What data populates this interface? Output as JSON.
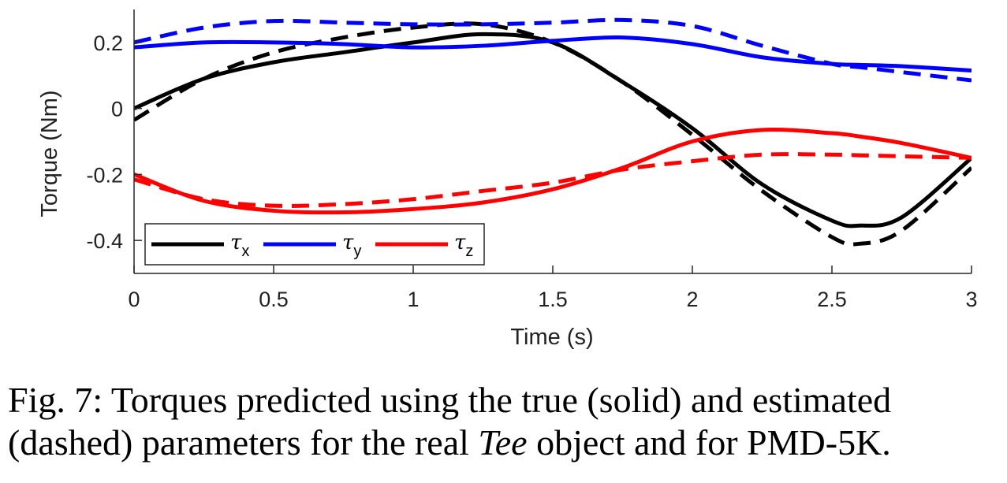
{
  "chart_data": {
    "type": "line",
    "xlabel": "Time (s)",
    "ylabel": "Torque (Nm)",
    "xlim": [
      0,
      3
    ],
    "ylim": [
      -0.5,
      0.3
    ],
    "xticks": [
      0,
      0.5,
      1,
      1.5,
      2,
      2.5,
      3
    ],
    "xtick_labels": [
      "0",
      "0.5",
      "1",
      "1.5",
      "2",
      "2.5",
      "3"
    ],
    "yticks": [
      -0.4,
      -0.2,
      0,
      0.2
    ],
    "ytick_labels": [
      "-0.4",
      "-0.2",
      "0",
      "0.2"
    ],
    "grid": false,
    "legend_position": "bottom-left",
    "x": [
      0,
      0.25,
      0.5,
      0.75,
      1.0,
      1.25,
      1.5,
      1.75,
      2.0,
      2.25,
      2.5,
      2.6,
      2.75,
      3.0
    ],
    "series": [
      {
        "legend_name": "x",
        "style": "solid",
        "color": "#000000",
        "show_legend": true,
        "values": [
          0.0,
          0.09,
          0.14,
          0.17,
          0.2,
          0.225,
          0.2,
          0.08,
          -0.06,
          -0.23,
          -0.34,
          -0.355,
          -0.33,
          -0.15
        ]
      },
      {
        "legend_name": "x",
        "style": "dashed",
        "color": "#000000",
        "show_legend": false,
        "values": [
          -0.035,
          0.09,
          0.17,
          0.215,
          0.245,
          0.255,
          0.2,
          0.08,
          -0.08,
          -0.25,
          -0.39,
          -0.41,
          -0.37,
          -0.18
        ]
      },
      {
        "legend_name": "y",
        "style": "solid",
        "color": "#0000ff",
        "show_legend": true,
        "values": [
          0.185,
          0.2,
          0.2,
          0.195,
          0.185,
          0.19,
          0.205,
          0.215,
          0.195,
          0.155,
          0.135,
          0.132,
          0.128,
          0.115
        ]
      },
      {
        "legend_name": "y",
        "style": "dashed",
        "color": "#0000ff",
        "show_legend": false,
        "values": [
          0.2,
          0.245,
          0.265,
          0.26,
          0.255,
          0.255,
          0.26,
          0.268,
          0.25,
          0.19,
          0.135,
          0.125,
          0.11,
          0.085
        ]
      },
      {
        "legend_name": "z",
        "style": "solid",
        "color": "#ff0000",
        "show_legend": true,
        "values": [
          -0.2,
          -0.28,
          -0.31,
          -0.315,
          -0.305,
          -0.285,
          -0.245,
          -0.18,
          -0.1,
          -0.065,
          -0.075,
          -0.085,
          -0.105,
          -0.15
        ]
      },
      {
        "legend_name": "z",
        "style": "dashed",
        "color": "#ff0000",
        "show_legend": false,
        "values": [
          -0.215,
          -0.275,
          -0.295,
          -0.29,
          -0.275,
          -0.25,
          -0.225,
          -0.185,
          -0.16,
          -0.14,
          -0.14,
          -0.142,
          -0.145,
          -0.15
        ]
      }
    ],
    "legend_symbol": "τ"
  },
  "caption": {
    "prefix": "Fig. 7: Torques predicted using the true (solid) and estimated (dashed) parameters for the real ",
    "emph": "Tee",
    "suffix": " object and for PMD-5K."
  }
}
